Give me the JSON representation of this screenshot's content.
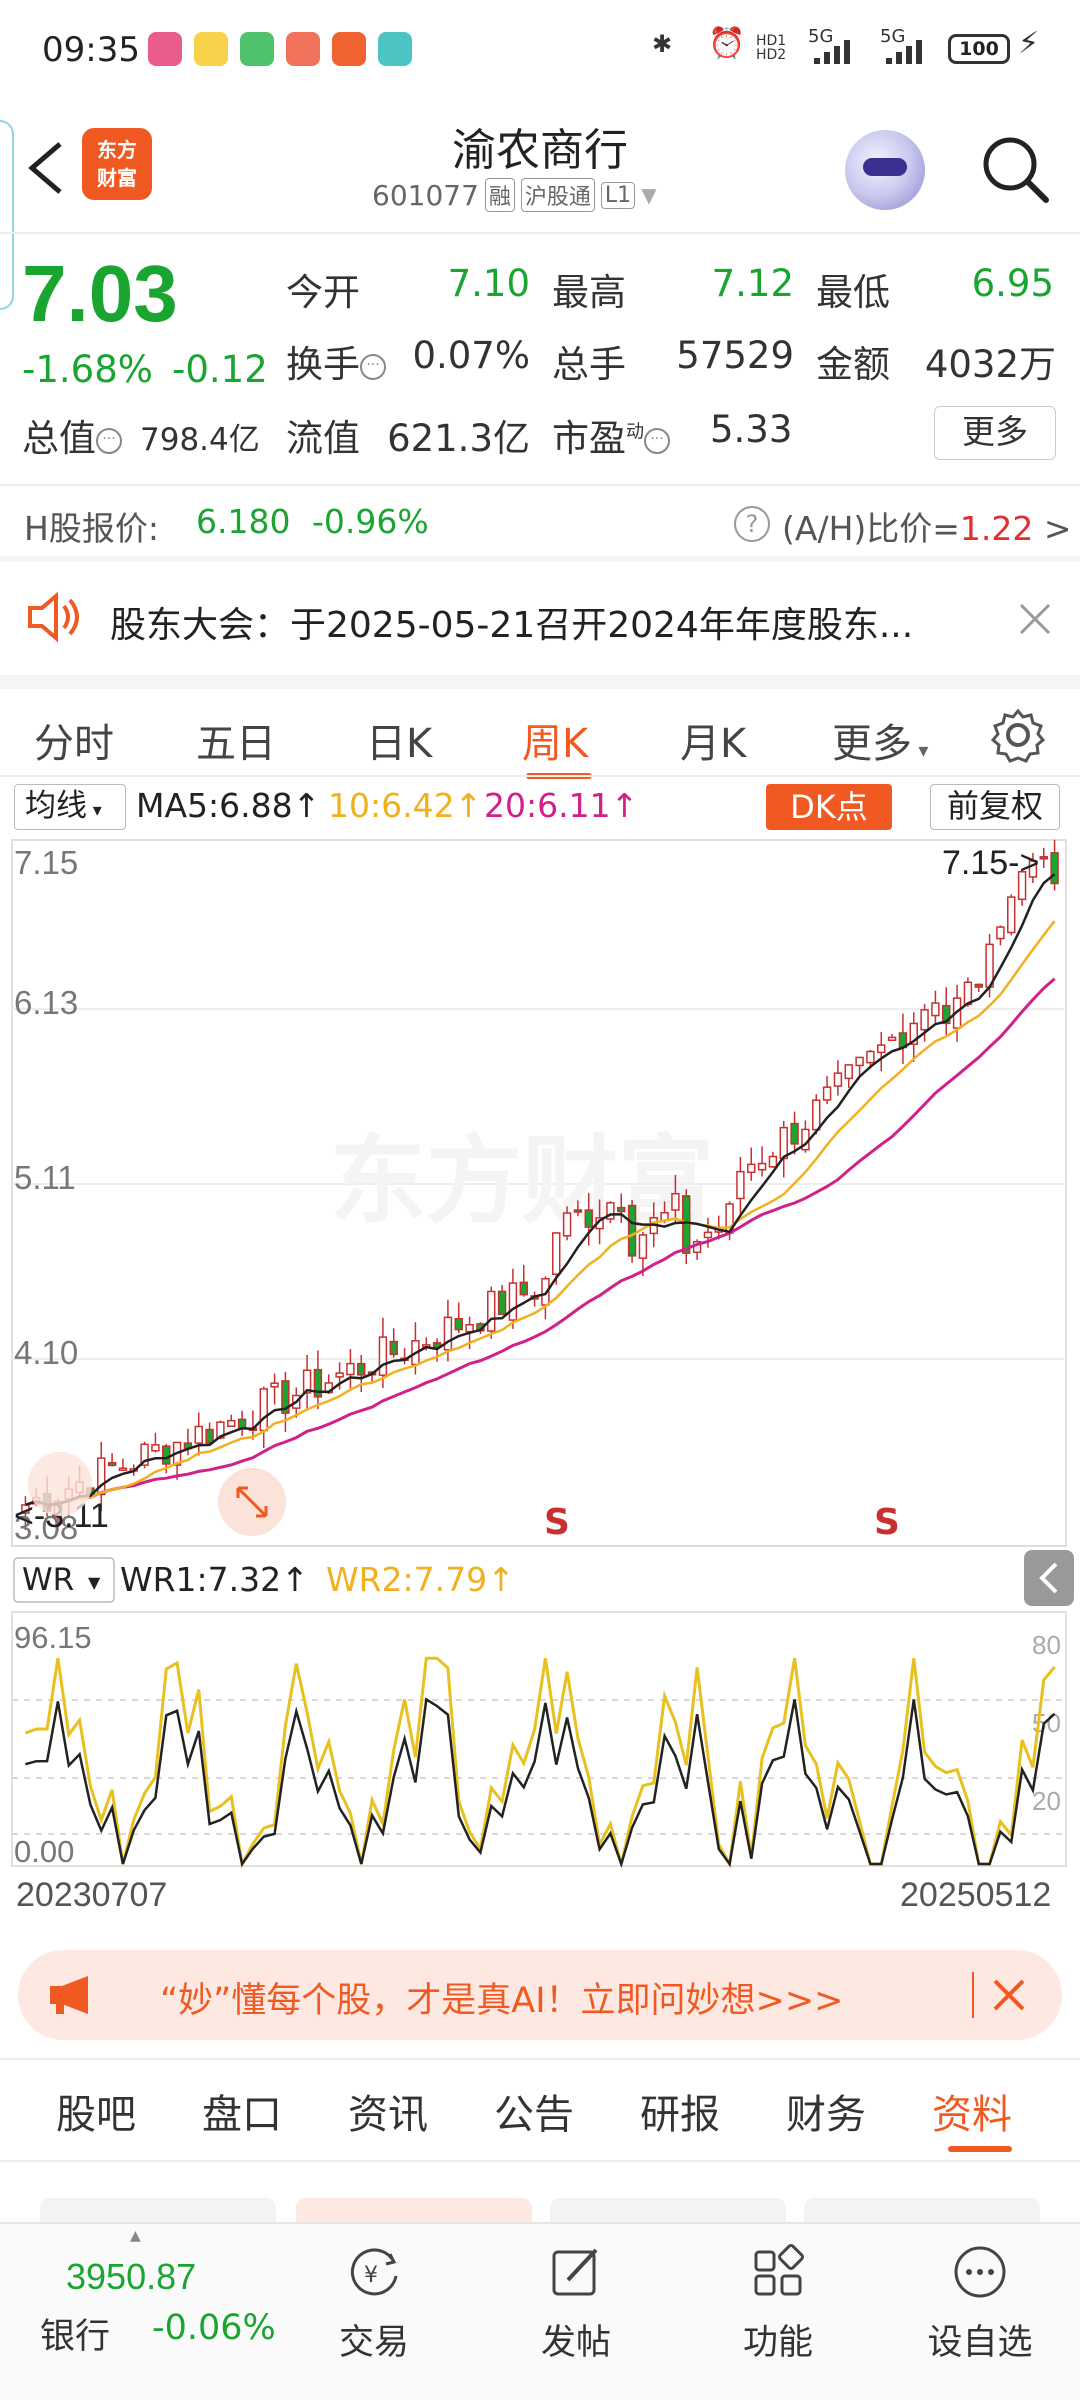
{
  "status_bar": {
    "time": "09:35",
    "battery": "100",
    "network": "5G",
    "hd": "HD1 HD2"
  },
  "header": {
    "logo_line1": "东方",
    "logo_line2": "财富",
    "title": "渝农商行",
    "code": "601077",
    "tag_margin": "融",
    "tag_connect": "沪股通",
    "tag_level": "L1"
  },
  "quote": {
    "price": "7.03",
    "change_pct": "-1.68%",
    "change_abs": "-0.12",
    "open_label": "今开",
    "open": "7.10",
    "high_label": "最高",
    "high": "7.12",
    "low_label": "最低",
    "low": "6.95",
    "turnover_label": "换手",
    "turnover": "0.07%",
    "volume_label": "总手",
    "volume": "57529",
    "amount_label": "金额",
    "amount": "4032万",
    "mktcap_label": "总值",
    "mktcap": "798.4亿",
    "float_label": "流值",
    "float": "621.3亿",
    "pe_label": "市盈",
    "pe_sup": "动",
    "pe": "5.33",
    "more": "更多"
  },
  "hshare": {
    "label": "H股报价:",
    "price": "6.180",
    "change": "-0.96%",
    "ratio_label": "(A/H)比价=",
    "ratio": "1.22",
    "arrow": ">"
  },
  "notice": {
    "text": "股东大会：于2025-05-21召开2024年年度股东..."
  },
  "tabs": [
    "分时",
    "五日",
    "日K",
    "周K",
    "月K",
    "更多"
  ],
  "active_tab": "周K",
  "ma": {
    "select": "均线",
    "ma5": "MA5:6.88↑",
    "ma10": "10:6.42↑",
    "ma20": "20:6.11↑",
    "dk": "DK点",
    "fq": "前复权",
    "colors": {
      "ma5": "#222222",
      "ma10": "#f0b020",
      "ma20": "#d0208a"
    }
  },
  "kchart": {
    "y_labels": [
      "7.15",
      "6.13",
      "5.11",
      "4.10",
      "3.08"
    ],
    "max_marker": "7.15->",
    "min_marker": "<-3.11",
    "sell_marks": [
      "S",
      "S"
    ],
    "watermark": "东方财富"
  },
  "wr": {
    "select": "WR",
    "wr1": "WR1:7.32↑",
    "wr2": "WR2:7.79↑",
    "y_top": "96.15",
    "y_bottom": "0.00",
    "right_labels": [
      "80",
      "50",
      "20"
    ],
    "date_start": "20230707",
    "date_end": "20250512"
  },
  "promo": {
    "text": "“妙”懂每个股，才是真AI！立即问妙想>>>"
  },
  "bottom_tabs": [
    "股吧",
    "盘口",
    "资讯",
    "公告",
    "研报",
    "财务",
    "资料"
  ],
  "bottom_active": "资料",
  "nav": {
    "index_value": "3950.87",
    "index_name": "银行",
    "index_change": "-0.06%",
    "items": [
      "交易",
      "发帖",
      "功能",
      "设自选"
    ]
  }
}
